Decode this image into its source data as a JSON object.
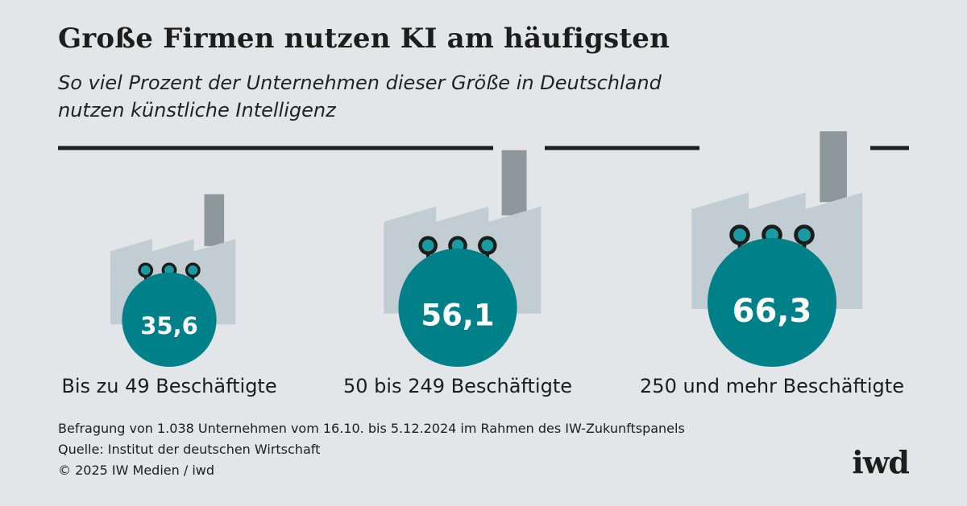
{
  "header": {
    "title": "Große Firmen nutzen KI am häufigsten",
    "subtitle_line1": "So viel Prozent der Unternehmen dieser Größe in Deutschland",
    "subtitle_line2": "nutzen künstliche Intelligenz"
  },
  "chart_data": {
    "type": "bar",
    "title": "Große Firmen nutzen KI am häufigsten",
    "subtitle": "So viel Prozent der Unternehmen dieser Größe in Deutschland nutzen künstliche Intelligenz",
    "categories": [
      "Bis zu 49 Beschäftigte",
      "50 bis 249 Beschäftigte",
      "250 und mehr Beschäftigte"
    ],
    "values": [
      35.6,
      56.1,
      66.3
    ],
    "value_labels": [
      "35,6",
      "56,1",
      "66,3"
    ],
    "unit": "Prozent",
    "style": "proportional circles with factory pictograms",
    "colors": {
      "circle": "#00818a",
      "factory": "#c2cdd3",
      "chimney": "#8e979c",
      "node_fill": "#1a9aa2",
      "line": "#1d1d1b"
    }
  },
  "footer": {
    "note": "Befragung von 1.038 Unternehmen vom 16.10. bis 5.12.2024 im Rahmen des IW-Zukunftspanels",
    "source": "Quelle: Institut der deutschen Wirtschaft",
    "copyright": "© 2025 IW Medien / iwd",
    "logo": "iwd"
  },
  "colors": {
    "background": "#e3e6e9",
    "text": "#1d1d1b"
  }
}
